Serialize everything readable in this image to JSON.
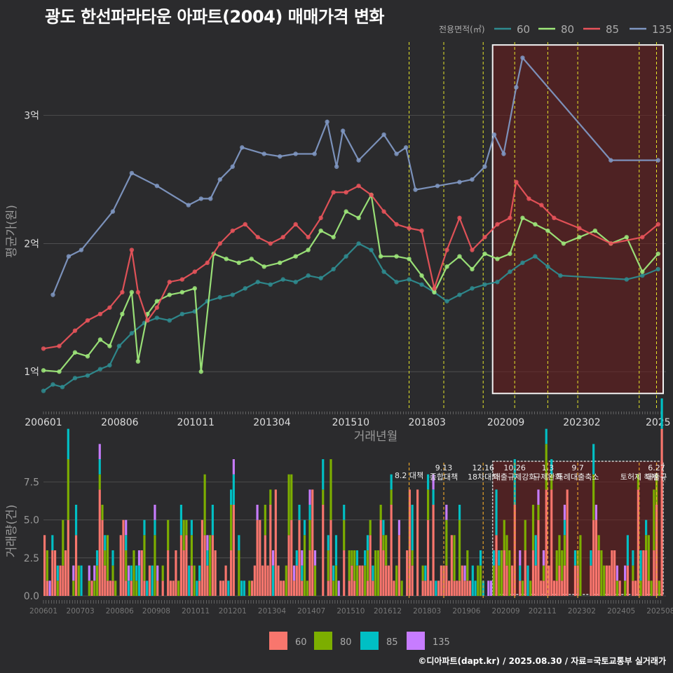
{
  "title": "광도 한선파라타운 아파트(2004) 매매가격 변화",
  "credit": "©디아파트(dapt.kr) / 2025.08.30 / 자료=국토교통부 실거래가",
  "colors": {
    "s60": "#2e8b8f",
    "s80": "#9ee87a",
    "s85": "#e8535a",
    "s135": "#7f97c2",
    "b60": "#f8766d",
    "b80": "#7cae00",
    "b85": "#00bfc4",
    "b135": "#c77cff",
    "highlight": "#e0e0e0",
    "policy": "#e5e52a",
    "policy_orange": "#e5a12a"
  },
  "chart_data": [
    {
      "type": "line",
      "xlabel": "거래년월",
      "ylabel": "평균가(원)",
      "x_ticks": [
        "200601",
        "200806",
        "201011",
        "201304",
        "201510",
        "201803",
        "202009",
        "202302",
        "2025"
      ],
      "y_ticks": [
        {
          "v": 1,
          "label": "1억"
        },
        {
          "v": 2,
          "label": "2억"
        },
        {
          "v": 3,
          "label": "3억"
        }
      ],
      "ylim": [
        0.7,
        3.6
      ],
      "xlim": [
        2006.0,
        2025.75
      ],
      "legend": {
        "title": "전용면적(㎡)",
        "position": "top-right",
        "entries": [
          "60",
          "80",
          "85",
          "135"
        ]
      },
      "highlight_box": {
        "x_from": 2020.25,
        "x_to": 2025.75,
        "y_from": 0.83,
        "y_to": 3.55
      },
      "policy_lines": [
        2017.6,
        2018.7,
        2019.95,
        2020.95,
        2022.0,
        2022.95,
        2024.9,
        2025.45
      ],
      "series": [
        {
          "name": "60",
          "points": [
            [
              2006.0,
              0.85
            ],
            [
              2006.3,
              0.9
            ],
            [
              2006.6,
              0.88
            ],
            [
              2007.0,
              0.95
            ],
            [
              2007.4,
              0.97
            ],
            [
              2007.8,
              1.02
            ],
            [
              2008.1,
              1.05
            ],
            [
              2008.4,
              1.2
            ],
            [
              2008.8,
              1.3
            ],
            [
              2009.2,
              1.38
            ],
            [
              2009.6,
              1.42
            ],
            [
              2010.0,
              1.4
            ],
            [
              2010.4,
              1.45
            ],
            [
              2010.8,
              1.47
            ],
            [
              2011.2,
              1.55
            ],
            [
              2011.6,
              1.58
            ],
            [
              2012.0,
              1.6
            ],
            [
              2012.4,
              1.65
            ],
            [
              2012.8,
              1.7
            ],
            [
              2013.2,
              1.68
            ],
            [
              2013.6,
              1.72
            ],
            [
              2014.0,
              1.7
            ],
            [
              2014.4,
              1.75
            ],
            [
              2014.8,
              1.73
            ],
            [
              2015.2,
              1.8
            ],
            [
              2015.6,
              1.9
            ],
            [
              2016.0,
              2.0
            ],
            [
              2016.4,
              1.95
            ],
            [
              2016.8,
              1.78
            ],
            [
              2017.2,
              1.7
            ],
            [
              2017.6,
              1.72
            ],
            [
              2018.0,
              1.68
            ],
            [
              2018.4,
              1.62
            ],
            [
              2018.8,
              1.55
            ],
            [
              2019.2,
              1.6
            ],
            [
              2019.6,
              1.65
            ],
            [
              2020.0,
              1.68
            ],
            [
              2020.4,
              1.7
            ],
            [
              2020.8,
              1.78
            ],
            [
              2021.2,
              1.85
            ],
            [
              2021.6,
              1.9
            ],
            [
              2022.0,
              1.82
            ],
            [
              2022.4,
              1.75
            ],
            [
              2024.5,
              1.72
            ],
            [
              2025.0,
              1.75
            ],
            [
              2025.5,
              1.8
            ]
          ]
        },
        {
          "name": "80",
          "points": [
            [
              2006.0,
              1.01
            ],
            [
              2006.5,
              1.0
            ],
            [
              2007.0,
              1.15
            ],
            [
              2007.4,
              1.12
            ],
            [
              2007.8,
              1.25
            ],
            [
              2008.1,
              1.2
            ],
            [
              2008.5,
              1.45
            ],
            [
              2008.8,
              1.62
            ],
            [
              2009.0,
              1.08
            ],
            [
              2009.3,
              1.45
            ],
            [
              2009.6,
              1.55
            ],
            [
              2010.0,
              1.6
            ],
            [
              2010.4,
              1.62
            ],
            [
              2010.8,
              1.65
            ],
            [
              2011.0,
              1.0
            ],
            [
              2011.4,
              1.92
            ],
            [
              2011.8,
              1.88
            ],
            [
              2012.2,
              1.85
            ],
            [
              2012.6,
              1.88
            ],
            [
              2013.0,
              1.82
            ],
            [
              2013.5,
              1.85
            ],
            [
              2014.0,
              1.9
            ],
            [
              2014.4,
              1.95
            ],
            [
              2014.8,
              2.1
            ],
            [
              2015.2,
              2.05
            ],
            [
              2015.6,
              2.25
            ],
            [
              2016.0,
              2.2
            ],
            [
              2016.4,
              2.38
            ],
            [
              2016.7,
              1.9
            ],
            [
              2017.2,
              1.9
            ],
            [
              2017.6,
              1.88
            ],
            [
              2018.0,
              1.75
            ],
            [
              2018.4,
              1.62
            ],
            [
              2018.8,
              1.82
            ],
            [
              2019.2,
              1.9
            ],
            [
              2019.6,
              1.8
            ],
            [
              2020.0,
              1.92
            ],
            [
              2020.4,
              1.88
            ],
            [
              2020.8,
              1.92
            ],
            [
              2021.2,
              2.2
            ],
            [
              2021.6,
              2.15
            ],
            [
              2022.0,
              2.1
            ],
            [
              2022.5,
              2.0
            ],
            [
              2023.0,
              2.05
            ],
            [
              2023.5,
              2.1
            ],
            [
              2024.0,
              2.0
            ],
            [
              2024.5,
              2.05
            ],
            [
              2025.0,
              1.78
            ],
            [
              2025.5,
              1.92
            ]
          ]
        },
        {
          "name": "85",
          "points": [
            [
              2006.0,
              1.18
            ],
            [
              2006.5,
              1.2
            ],
            [
              2007.0,
              1.32
            ],
            [
              2007.4,
              1.4
            ],
            [
              2007.8,
              1.45
            ],
            [
              2008.1,
              1.5
            ],
            [
              2008.5,
              1.62
            ],
            [
              2008.8,
              1.95
            ],
            [
              2009.0,
              1.62
            ],
            [
              2009.3,
              1.4
            ],
            [
              2009.6,
              1.5
            ],
            [
              2010.0,
              1.7
            ],
            [
              2010.4,
              1.72
            ],
            [
              2010.8,
              1.78
            ],
            [
              2011.2,
              1.85
            ],
            [
              2011.6,
              2.0
            ],
            [
              2012.0,
              2.1
            ],
            [
              2012.4,
              2.15
            ],
            [
              2012.8,
              2.05
            ],
            [
              2013.2,
              2.0
            ],
            [
              2013.6,
              2.05
            ],
            [
              2014.0,
              2.15
            ],
            [
              2014.4,
              2.05
            ],
            [
              2014.8,
              2.2
            ],
            [
              2015.2,
              2.4
            ],
            [
              2015.6,
              2.4
            ],
            [
              2016.0,
              2.45
            ],
            [
              2016.4,
              2.38
            ],
            [
              2016.8,
              2.25
            ],
            [
              2017.2,
              2.15
            ],
            [
              2017.6,
              2.12
            ],
            [
              2018.0,
              2.1
            ],
            [
              2018.4,
              1.65
            ],
            [
              2018.8,
              1.95
            ],
            [
              2019.2,
              2.2
            ],
            [
              2019.6,
              1.95
            ],
            [
              2020.0,
              2.05
            ],
            [
              2020.4,
              2.15
            ],
            [
              2020.8,
              2.2
            ],
            [
              2021.0,
              2.48
            ],
            [
              2021.4,
              2.35
            ],
            [
              2021.8,
              2.3
            ],
            [
              2022.2,
              2.2
            ],
            [
              2023.0,
              2.12
            ],
            [
              2024.0,
              2.0
            ],
            [
              2025.0,
              2.05
            ],
            [
              2025.5,
              2.15
            ]
          ]
        },
        {
          "name": "135",
          "points": [
            [
              2006.3,
              1.6
            ],
            [
              2006.8,
              1.9
            ],
            [
              2007.2,
              1.95
            ],
            [
              2008.2,
              2.25
            ],
            [
              2008.8,
              2.55
            ],
            [
              2009.6,
              2.45
            ],
            [
              2010.6,
              2.3
            ],
            [
              2011.0,
              2.35
            ],
            [
              2011.3,
              2.35
            ],
            [
              2011.6,
              2.5
            ],
            [
              2012.0,
              2.6
            ],
            [
              2012.3,
              2.75
            ],
            [
              2013.0,
              2.7
            ],
            [
              2013.5,
              2.68
            ],
            [
              2014.0,
              2.7
            ],
            [
              2014.6,
              2.7
            ],
            [
              2015.0,
              2.95
            ],
            [
              2015.3,
              2.6
            ],
            [
              2015.5,
              2.88
            ],
            [
              2016.0,
              2.65
            ],
            [
              2016.8,
              2.85
            ],
            [
              2017.2,
              2.7
            ],
            [
              2017.5,
              2.75
            ],
            [
              2017.8,
              2.42
            ],
            [
              2018.5,
              2.45
            ],
            [
              2019.2,
              2.48
            ],
            [
              2019.6,
              2.5
            ],
            [
              2020.0,
              2.6
            ],
            [
              2020.3,
              2.85
            ],
            [
              2020.6,
              2.7
            ],
            [
              2021.0,
              3.22
            ],
            [
              2021.2,
              3.45
            ],
            [
              2024.0,
              2.65
            ],
            [
              2025.5,
              2.65
            ]
          ]
        }
      ]
    },
    {
      "type": "bar",
      "xlabel": "",
      "ylabel": "거래량(건)",
      "x_ticks": [
        "200601",
        "200703",
        "200806",
        "200908",
        "201011",
        "201201",
        "201304",
        "201407",
        "201510",
        "201612",
        "201803",
        "201906",
        "202009",
        "202111",
        "202302",
        "202405",
        "202508"
      ],
      "y_ticks": [
        {
          "v": 0,
          "label": "0.0"
        },
        {
          "v": 2.5,
          "label": "2.5"
        },
        {
          "v": 5,
          "label": "5.0"
        },
        {
          "v": 7.5,
          "label": "7.5"
        }
      ],
      "ylim": [
        0,
        9
      ],
      "legend": {
        "position": "bottom",
        "entries": [
          "60",
          "80",
          "85",
          "135"
        ]
      },
      "annotations": [
        {
          "x": 2017.6,
          "lines": [
            "8.2 대책"
          ],
          "color": "policy_orange"
        },
        {
          "x": 2018.7,
          "lines": [
            "9.13",
            "종합대책"
          ],
          "color": "policy_orange"
        },
        {
          "x": 2019.95,
          "lines": [
            "12.16",
            "18차대책"
          ],
          "color": "policy_orange"
        },
        {
          "x": 2020.95,
          "lines": [
            "10.26",
            "대출규제강화"
          ],
          "color": "policy_orange"
        },
        {
          "x": 2022.0,
          "lines": [
            "1.3",
            "규제완화"
          ],
          "color": "policy_orange"
        },
        {
          "x": 2022.95,
          "lines": [
            "9.7",
            "특례대출축소"
          ],
          "color": "policy_orange"
        },
        {
          "x": 2024.9,
          "lines": [
            "",
            "토허제 해제"
          ],
          "color": "policy_orange"
        },
        {
          "x": 2025.45,
          "lines": [
            "6.27",
            "대출규"
          ],
          "color": "policy_orange"
        }
      ],
      "highlight_box": {
        "x_from": 2020.25,
        "x_to": 2025.75
      },
      "monthly": []
    }
  ]
}
